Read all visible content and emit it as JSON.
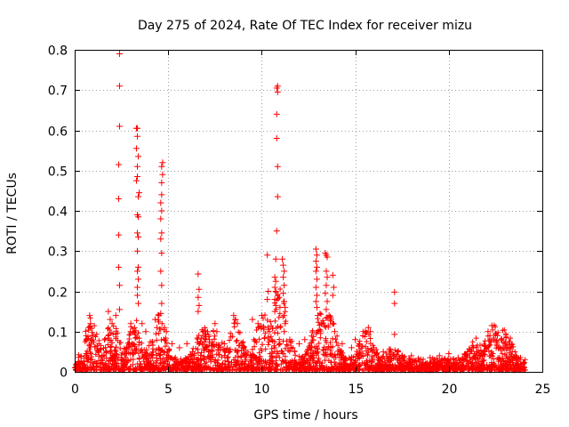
{
  "chart_data": {
    "type": "scatter",
    "title": "Day 275 of 2024, Rate Of TEC Index for receiver mizu",
    "xlabel": "GPS time / hours",
    "ylabel": "ROTI / TECUs",
    "xlim": [
      0,
      25
    ],
    "ylim": [
      0,
      0.8
    ],
    "x_ticks": [
      0,
      5,
      10,
      15,
      20,
      25
    ],
    "x_tick_labels": [
      "0",
      "5",
      "10",
      "15",
      "20",
      "25"
    ],
    "y_ticks": [
      0,
      0.1,
      0.2,
      0.3,
      0.4,
      0.5,
      0.6,
      0.7,
      0.8
    ],
    "y_tick_labels": [
      "0",
      "0.1",
      "0.2",
      "0.3",
      "0.4",
      "0.5",
      "0.6",
      "0.7",
      "0.8"
    ],
    "grid": true,
    "marker": "+",
    "color": "#ff0000",
    "series": [
      {
        "name": "ROTI",
        "points": [
          [
            2.4,
            0.79
          ],
          [
            2.4,
            0.71
          ],
          [
            2.4,
            0.61
          ],
          [
            2.35,
            0.515
          ],
          [
            2.35,
            0.43
          ],
          [
            2.35,
            0.34
          ],
          [
            2.35,
            0.26
          ],
          [
            2.4,
            0.215
          ],
          [
            2.4,
            0.155
          ],
          [
            3.3,
            0.605
          ],
          [
            3.35,
            0.605
          ],
          [
            3.35,
            0.585
          ],
          [
            3.3,
            0.555
          ],
          [
            3.4,
            0.535
          ],
          [
            3.35,
            0.51
          ],
          [
            3.35,
            0.485
          ],
          [
            3.3,
            0.475
          ],
          [
            3.45,
            0.445
          ],
          [
            3.4,
            0.435
          ],
          [
            3.35,
            0.39
          ],
          [
            3.4,
            0.385
          ],
          [
            3.35,
            0.345
          ],
          [
            3.4,
            0.335
          ],
          [
            3.35,
            0.3
          ],
          [
            3.4,
            0.26
          ],
          [
            3.35,
            0.25
          ],
          [
            3.4,
            0.23
          ],
          [
            3.35,
            0.21
          ],
          [
            3.35,
            0.19
          ],
          [
            3.4,
            0.17
          ],
          [
            4.7,
            0.52
          ],
          [
            4.65,
            0.51
          ],
          [
            4.7,
            0.49
          ],
          [
            4.65,
            0.47
          ],
          [
            4.65,
            0.44
          ],
          [
            4.6,
            0.42
          ],
          [
            4.65,
            0.4
          ],
          [
            4.6,
            0.38
          ],
          [
            4.65,
            0.345
          ],
          [
            4.6,
            0.33
          ],
          [
            4.65,
            0.295
          ],
          [
            4.6,
            0.25
          ],
          [
            4.65,
            0.215
          ],
          [
            4.65,
            0.17
          ],
          [
            4.6,
            0.145
          ],
          [
            6.6,
            0.243
          ],
          [
            6.65,
            0.205
          ],
          [
            6.6,
            0.185
          ],
          [
            6.65,
            0.165
          ],
          [
            6.6,
            0.15
          ],
          [
            10.85,
            0.71
          ],
          [
            10.8,
            0.705
          ],
          [
            10.85,
            0.695
          ],
          [
            10.8,
            0.64
          ],
          [
            10.8,
            0.58
          ],
          [
            10.85,
            0.51
          ],
          [
            10.85,
            0.435
          ],
          [
            10.8,
            0.35
          ],
          [
            10.75,
            0.28
          ],
          [
            10.7,
            0.235
          ],
          [
            10.75,
            0.225
          ],
          [
            10.7,
            0.21
          ],
          [
            10.75,
            0.2
          ],
          [
            10.7,
            0.18
          ],
          [
            10.75,
            0.165
          ],
          [
            10.7,
            0.15
          ],
          [
            11.1,
            0.28
          ],
          [
            11.15,
            0.265
          ],
          [
            11.2,
            0.25
          ],
          [
            11.15,
            0.235
          ],
          [
            11.2,
            0.215
          ],
          [
            11.15,
            0.195
          ],
          [
            11.2,
            0.175
          ],
          [
            11.25,
            0.16
          ],
          [
            11.2,
            0.14
          ],
          [
            11.25,
            0.12
          ],
          [
            11.2,
            0.1
          ],
          [
            10.3,
            0.29
          ],
          [
            10.35,
            0.2
          ],
          [
            10.3,
            0.18
          ],
          [
            12.9,
            0.305
          ],
          [
            12.95,
            0.29
          ],
          [
            12.9,
            0.275
          ],
          [
            12.95,
            0.26
          ],
          [
            12.9,
            0.25
          ],
          [
            12.95,
            0.23
          ],
          [
            12.9,
            0.21
          ],
          [
            12.95,
            0.19
          ],
          [
            12.9,
            0.175
          ],
          [
            12.95,
            0.16
          ],
          [
            13.4,
            0.295
          ],
          [
            13.45,
            0.29
          ],
          [
            13.5,
            0.285
          ],
          [
            13.45,
            0.25
          ],
          [
            13.5,
            0.235
          ],
          [
            13.45,
            0.215
          ],
          [
            13.4,
            0.195
          ],
          [
            13.5,
            0.175
          ],
          [
            13.45,
            0.155
          ],
          [
            13.5,
            0.135
          ],
          [
            13.8,
            0.24
          ],
          [
            13.85,
            0.21
          ],
          [
            13.8,
            0.19
          ],
          [
            17.1,
            0.198
          ],
          [
            17.1,
            0.17
          ],
          [
            17.1,
            0.093
          ],
          [
            0.8,
            0.14
          ],
          [
            0.85,
            0.12
          ],
          [
            0.75,
            0.11
          ],
          [
            1.0,
            0.09
          ],
          [
            1.8,
            0.15
          ],
          [
            1.9,
            0.13
          ],
          [
            2.2,
            0.14
          ],
          [
            2.0,
            0.12
          ],
          [
            3.0,
            0.12
          ],
          [
            3.2,
            0.11
          ],
          [
            3.6,
            0.12
          ],
          [
            3.8,
            0.1
          ],
          [
            4.3,
            0.13
          ],
          [
            4.4,
            0.11
          ],
          [
            4.5,
            0.14
          ],
          [
            4.8,
            0.11
          ],
          [
            4.9,
            0.1
          ],
          [
            5.2,
            0.07
          ],
          [
            5.6,
            0.06
          ],
          [
            6.0,
            0.07
          ],
          [
            6.3,
            0.05
          ],
          [
            7.0,
            0.08
          ],
          [
            7.5,
            0.12
          ],
          [
            7.6,
            0.1
          ],
          [
            8.0,
            0.07
          ],
          [
            8.5,
            0.14
          ],
          [
            8.6,
            0.13
          ],
          [
            8.7,
            0.12
          ],
          [
            9.0,
            0.06
          ],
          [
            9.5,
            0.13
          ],
          [
            9.8,
            0.12
          ],
          [
            10.0,
            0.14
          ],
          [
            10.1,
            0.11
          ],
          [
            10.4,
            0.1
          ],
          [
            11.5,
            0.08
          ],
          [
            12.0,
            0.07
          ],
          [
            12.3,
            0.08
          ],
          [
            12.6,
            0.06
          ],
          [
            13.0,
            0.14
          ],
          [
            13.2,
            0.12
          ],
          [
            13.6,
            0.14
          ],
          [
            13.7,
            0.13
          ],
          [
            13.9,
            0.1
          ],
          [
            14.3,
            0.07
          ],
          [
            14.8,
            0.06
          ],
          [
            15.0,
            0.08
          ],
          [
            15.2,
            0.07
          ],
          [
            15.7,
            0.11
          ],
          [
            15.8,
            0.1
          ],
          [
            16.0,
            0.06
          ],
          [
            16.5,
            0.05
          ],
          [
            17.5,
            0.04
          ],
          [
            18.0,
            0.04
          ],
          [
            18.5,
            0.03
          ],
          [
            19.0,
            0.035
          ],
          [
            19.5,
            0.04
          ],
          [
            20.0,
            0.045
          ],
          [
            20.5,
            0.035
          ],
          [
            21.0,
            0.05
          ],
          [
            21.3,
            0.06
          ],
          [
            21.5,
            0.05
          ],
          [
            21.8,
            0.04
          ],
          [
            22.1,
            0.1
          ],
          [
            22.2,
            0.09
          ],
          [
            22.3,
            0.115
          ],
          [
            22.4,
            0.08
          ],
          [
            22.6,
            0.09
          ],
          [
            22.8,
            0.08
          ],
          [
            23.0,
            0.07
          ],
          [
            23.3,
            0.06
          ],
          [
            23.6,
            0.04
          ],
          [
            24.0,
            0.02
          ]
        ]
      }
    ]
  }
}
